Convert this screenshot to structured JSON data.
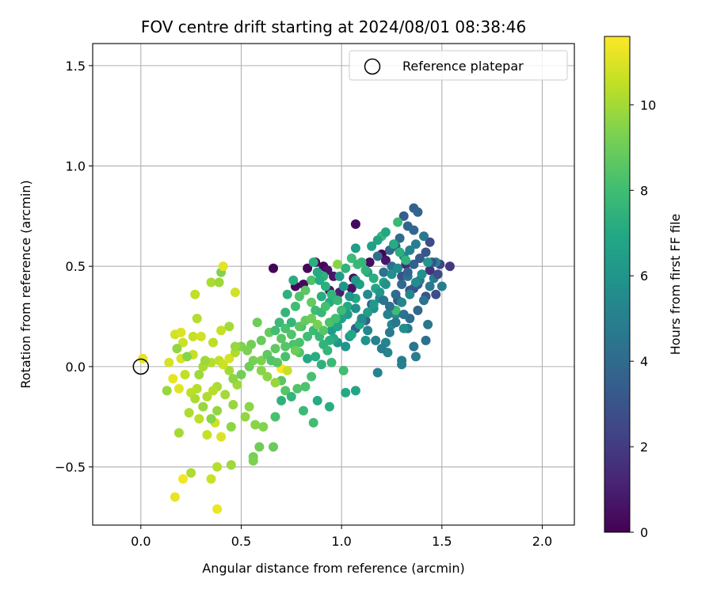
{
  "chart_data": {
    "type": "scatter",
    "title": "FOV centre drift starting at 2024/08/01 08:38:46",
    "xlabel": "Angular distance from reference (arcmin)",
    "ylabel": "Rotation from reference (arcmin)",
    "xlim": [
      -0.24,
      2.16
    ],
    "ylim": [
      -0.79,
      1.61
    ],
    "xticks": [
      0.0,
      0.5,
      1.0,
      1.5,
      2.0
    ],
    "xtick_labels": [
      "0.0",
      "0.5",
      "1.0",
      "1.5",
      "2.0"
    ],
    "yticks": [
      -0.5,
      0.0,
      0.5,
      1.0,
      1.5
    ],
    "ytick_labels": [
      "−0.5",
      "0.0",
      "0.5",
      "1.0",
      "1.5"
    ],
    "grid": true,
    "legend": {
      "position": "top-right",
      "entries": [
        "Reference platepar"
      ]
    },
    "reference_point": {
      "label": "Reference platepar",
      "x": 0.0,
      "y": 0.0
    },
    "colorbar": {
      "label": "Hours from first FF file",
      "min": 0,
      "max": 11.6,
      "ticks": [
        0,
        2,
        4,
        6,
        8,
        10
      ],
      "tick_labels": [
        "0",
        "2",
        "4",
        "6",
        "8",
        "10"
      ],
      "colormap": "viridis"
    },
    "points": [
      [
        0.66,
        0.49,
        0.1
      ],
      [
        0.81,
        0.41,
        0.3
      ],
      [
        0.83,
        0.49,
        0.2
      ],
      [
        0.87,
        0.52,
        0.1
      ],
      [
        0.91,
        0.5,
        0.2
      ],
      [
        0.93,
        0.48,
        0.6
      ],
      [
        1.07,
        0.71,
        0.3
      ],
      [
        1.2,
        0.56,
        0.1
      ],
      [
        1.14,
        0.52,
        0.4
      ],
      [
        1.06,
        0.44,
        0.5
      ],
      [
        0.96,
        0.45,
        0.7
      ],
      [
        0.77,
        0.4,
        0.2
      ],
      [
        0.94,
        0.38,
        0.8
      ],
      [
        0.99,
        0.37,
        1.0
      ],
      [
        1.05,
        0.39,
        0.6
      ],
      [
        1.22,
        0.53,
        0.7
      ],
      [
        1.32,
        0.51,
        1.3
      ],
      [
        1.44,
        0.48,
        1.6
      ],
      [
        1.54,
        0.5,
        1.9
      ],
      [
        1.49,
        0.51,
        2.3
      ],
      [
        1.44,
        0.62,
        2.6
      ],
      [
        1.36,
        0.39,
        2.8
      ],
      [
        1.3,
        0.45,
        3.0
      ],
      [
        1.34,
        0.38,
        3.1
      ],
      [
        1.38,
        0.41,
        3.2
      ],
      [
        1.42,
        0.35,
        2.9
      ],
      [
        1.47,
        0.36,
        2.7
      ],
      [
        1.28,
        0.33,
        3.3
      ],
      [
        1.15,
        0.31,
        3.4
      ],
      [
        1.12,
        0.23,
        3.5
      ],
      [
        1.07,
        0.19,
        3.6
      ],
      [
        1.27,
        0.6,
        3.5
      ],
      [
        1.31,
        0.75,
        3.4
      ],
      [
        1.36,
        0.79,
        3.6
      ],
      [
        1.38,
        0.77,
        3.7
      ],
      [
        1.33,
        0.7,
        3.8
      ],
      [
        1.36,
        0.68,
        3.9
      ],
      [
        1.29,
        0.64,
        4.0
      ],
      [
        1.24,
        0.58,
        4.1
      ],
      [
        1.18,
        0.55,
        4.2
      ],
      [
        1.25,
        0.5,
        4.3
      ],
      [
        1.21,
        0.47,
        4.4
      ],
      [
        1.33,
        0.45,
        4.5
      ],
      [
        1.39,
        0.43,
        4.6
      ],
      [
        1.44,
        0.4,
        4.7
      ],
      [
        1.46,
        0.44,
        4.8
      ],
      [
        1.5,
        0.4,
        4.9
      ],
      [
        1.47,
        0.52,
        5.0
      ],
      [
        1.41,
        0.33,
        4.4
      ],
      [
        1.43,
        0.21,
        4.6
      ],
      [
        1.42,
        0.13,
        4.3
      ],
      [
        1.36,
        0.1,
        4.5
      ],
      [
        1.33,
        0.19,
        4.7
      ],
      [
        1.3,
        0.03,
        4.8
      ],
      [
        1.37,
        0.05,
        4.9
      ],
      [
        1.3,
        0.01,
        5.0
      ],
      [
        1.18,
        -0.03,
        5.1
      ],
      [
        1.23,
        0.07,
        5.2
      ],
      [
        1.22,
        0.12,
        5.3
      ],
      [
        1.25,
        0.21,
        5.4
      ],
      [
        1.27,
        0.26,
        5.5
      ],
      [
        1.31,
        0.19,
        5.6
      ],
      [
        1.16,
        0.29,
        5.7
      ],
      [
        1.1,
        0.23,
        5.8
      ],
      [
        1.12,
        0.13,
        5.9
      ],
      [
        1.02,
        0.1,
        6.0
      ],
      [
        0.98,
        0.12,
        6.1
      ],
      [
        1.04,
        0.15,
        6.2
      ],
      [
        0.95,
        0.18,
        6.3
      ],
      [
        1.07,
        0.59,
        6.4
      ],
      [
        1.09,
        0.41,
        6.5
      ],
      [
        1.13,
        0.47,
        6.6
      ],
      [
        1.21,
        0.42,
        6.7
      ],
      [
        1.17,
        0.39,
        6.8
      ],
      [
        1.07,
        0.34,
        6.9
      ],
      [
        1.03,
        0.3,
        7.0
      ],
      [
        0.94,
        0.32,
        7.1
      ],
      [
        0.9,
        0.35,
        7.2
      ],
      [
        0.86,
        0.52,
        7.3
      ],
      [
        0.91,
        0.45,
        7.4
      ],
      [
        1.02,
        0.49,
        7.5
      ],
      [
        1.1,
        0.52,
        7.6
      ],
      [
        1.2,
        0.65,
        7.7
      ],
      [
        1.28,
        0.72,
        7.8
      ],
      [
        1.27,
        0.28,
        7.9
      ],
      [
        1.23,
        0.26,
        5.0
      ],
      [
        1.19,
        0.34,
        5.3
      ],
      [
        1.13,
        0.36,
        5.5
      ],
      [
        1.07,
        0.43,
        6.1
      ],
      [
        1.03,
        0.26,
        6.3
      ],
      [
        1.0,
        0.24,
        6.6
      ],
      [
        0.98,
        0.2,
        6.8
      ],
      [
        0.96,
        0.14,
        7.0
      ],
      [
        0.94,
        0.13,
        7.3
      ],
      [
        0.91,
        0.11,
        7.5
      ],
      [
        0.89,
        0.15,
        7.7
      ],
      [
        0.86,
        0.18,
        7.8
      ],
      [
        0.83,
        0.15,
        8.0
      ],
      [
        0.8,
        0.2,
        8.1
      ],
      [
        0.79,
        0.12,
        8.2
      ],
      [
        0.76,
        0.11,
        8.3
      ],
      [
        0.79,
        0.07,
        8.4
      ],
      [
        0.72,
        0.1,
        8.5
      ],
      [
        0.7,
        0.14,
        8.6
      ],
      [
        0.67,
        0.09,
        8.7
      ],
      [
        0.64,
        0.17,
        8.8
      ],
      [
        0.6,
        0.13,
        8.9
      ],
      [
        0.58,
        0.22,
        9.0
      ],
      [
        0.55,
        0.11,
        9.1
      ],
      [
        0.83,
        0.04,
        7.0
      ],
      [
        0.87,
        0.05,
        7.2
      ],
      [
        0.9,
        0.01,
        7.4
      ],
      [
        0.93,
        0.08,
        7.6
      ],
      [
        0.95,
        0.02,
        7.8
      ],
      [
        1.01,
        -0.02,
        8.0
      ],
      [
        0.85,
        -0.05,
        8.2
      ],
      [
        0.82,
        -0.1,
        8.3
      ],
      [
        0.78,
        -0.11,
        8.4
      ],
      [
        0.72,
        -0.12,
        8.5
      ],
      [
        0.7,
        -0.07,
        8.6
      ],
      [
        0.7,
        -0.17,
        7.4
      ],
      [
        0.75,
        -0.15,
        7.6
      ],
      [
        0.81,
        -0.22,
        7.8
      ],
      [
        0.86,
        -0.28,
        8.0
      ],
      [
        0.94,
        -0.2,
        7.2
      ],
      [
        1.02,
        -0.13,
        7.0
      ],
      [
        1.07,
        -0.12,
        6.8
      ],
      [
        0.88,
        -0.17,
        7.1
      ],
      [
        0.67,
        -0.25,
        8.2
      ],
      [
        0.66,
        -0.4,
        8.9
      ],
      [
        0.59,
        -0.4,
        9.0
      ],
      [
        0.56,
        -0.45,
        9.2
      ],
      [
        0.56,
        -0.47,
        9.3
      ],
      [
        0.61,
        -0.3,
        9.4
      ],
      [
        0.57,
        -0.29,
        9.5
      ],
      [
        0.54,
        -0.2,
        9.6
      ],
      [
        0.52,
        -0.25,
        9.7
      ],
      [
        0.46,
        -0.19,
        9.8
      ],
      [
        0.48,
        -0.09,
        9.9
      ],
      [
        0.44,
        -0.02,
        10.0
      ],
      [
        0.38,
        -0.1,
        10.1
      ],
      [
        0.33,
        -0.15,
        10.2
      ],
      [
        0.28,
        -0.11,
        10.3
      ],
      [
        0.25,
        -0.13,
        10.4
      ],
      [
        0.22,
        -0.04,
        10.5
      ],
      [
        0.26,
        0.06,
        10.6
      ],
      [
        0.21,
        0.12,
        10.7
      ],
      [
        0.17,
        0.16,
        10.8
      ],
      [
        0.14,
        0.02,
        10.9
      ],
      [
        0.2,
        0.04,
        11.0
      ],
      [
        0.19,
        -0.11,
        11.1
      ],
      [
        0.16,
        -0.06,
        11.2
      ],
      [
        0.13,
        -0.12,
        9.8
      ],
      [
        0.19,
        -0.33,
        10.0
      ],
      [
        0.24,
        -0.23,
        10.2
      ],
      [
        0.29,
        -0.26,
        10.4
      ],
      [
        0.33,
        -0.34,
        10.6
      ],
      [
        0.37,
        -0.28,
        10.8
      ],
      [
        0.4,
        -0.35,
        11.0
      ],
      [
        0.45,
        -0.3,
        9.6
      ],
      [
        0.45,
        -0.49,
        9.9
      ],
      [
        0.38,
        -0.5,
        10.3
      ],
      [
        0.35,
        -0.56,
        10.7
      ],
      [
        0.25,
        -0.53,
        10.2
      ],
      [
        0.21,
        -0.56,
        11.4
      ],
      [
        0.17,
        -0.65,
        11.2
      ],
      [
        0.38,
        -0.71,
        11.3
      ],
      [
        0.29,
        -0.04,
        9.9
      ],
      [
        0.31,
        0.0,
        10.1
      ],
      [
        0.35,
        0.02,
        10.3
      ],
      [
        0.39,
        0.03,
        10.5
      ],
      [
        0.41,
        0.01,
        10.7
      ],
      [
        0.44,
        0.04,
        10.9
      ],
      [
        0.47,
        0.07,
        10.2
      ],
      [
        0.5,
        0.1,
        9.4
      ],
      [
        0.53,
        0.08,
        9.3
      ],
      [
        0.56,
        0.03,
        9.2
      ],
      [
        0.6,
        -0.02,
        9.5
      ],
      [
        0.63,
        -0.05,
        9.6
      ],
      [
        0.67,
        -0.08,
        9.8
      ],
      [
        0.7,
        -0.01,
        11.5
      ],
      [
        0.73,
        -0.02,
        10.6
      ],
      [
        0.77,
        0.08,
        9.0
      ],
      [
        0.36,
        0.12,
        10.4
      ],
      [
        0.4,
        0.18,
        10.6
      ],
      [
        0.44,
        0.2,
        10.0
      ],
      [
        0.47,
        0.1,
        9.8
      ],
      [
        0.35,
        0.42,
        10.1
      ],
      [
        0.39,
        0.42,
        9.9
      ],
      [
        0.4,
        0.47,
        9.4
      ],
      [
        0.41,
        0.5,
        11.1
      ],
      [
        0.47,
        0.37,
        10.8
      ],
      [
        0.27,
        0.36,
        10.5
      ],
      [
        0.28,
        0.24,
        10.3
      ],
      [
        0.26,
        0.15,
        10.6
      ],
      [
        0.3,
        0.15,
        10.8
      ],
      [
        0.2,
        0.17,
        11.0
      ],
      [
        0.18,
        0.09,
        9.7
      ],
      [
        0.23,
        0.05,
        9.5
      ],
      [
        0.32,
        0.03,
        9.9
      ],
      [
        0.36,
        -0.12,
        10.3
      ],
      [
        0.42,
        -0.14,
        10.0
      ],
      [
        0.38,
        -0.22,
        9.7
      ],
      [
        0.35,
        -0.26,
        9.5
      ],
      [
        0.31,
        -0.2,
        9.8
      ],
      [
        0.27,
        -0.16,
        10.1
      ],
      [
        0.01,
        0.04,
        11.2
      ],
      [
        0.5,
        -0.04,
        9.1
      ],
      [
        0.46,
        -0.06,
        9.6
      ],
      [
        0.54,
        0.0,
        9.0
      ],
      [
        0.6,
        0.03,
        9.3
      ],
      [
        0.63,
        0.06,
        8.7
      ],
      [
        0.65,
        0.03,
        8.4
      ],
      [
        0.68,
        0.02,
        8.6
      ],
      [
        0.72,
        0.05,
        8.2
      ],
      [
        0.75,
        0.22,
        7.6
      ],
      [
        0.77,
        0.3,
        8.0
      ],
      [
        0.79,
        0.35,
        8.4
      ],
      [
        0.82,
        0.38,
        8.6
      ],
      [
        0.85,
        0.32,
        8.8
      ],
      [
        0.87,
        0.28,
        7.9
      ],
      [
        0.9,
        0.27,
        7.7
      ],
      [
        0.92,
        0.3,
        8.1
      ],
      [
        0.98,
        0.51,
        9.5
      ],
      [
        0.85,
        0.43,
        8.3
      ],
      [
        0.88,
        0.47,
        7.0
      ],
      [
        0.76,
        0.43,
        7.2
      ],
      [
        0.73,
        0.36,
        7.4
      ],
      [
        0.72,
        0.27,
        7.6
      ],
      [
        0.69,
        0.22,
        7.8
      ],
      [
        0.67,
        0.18,
        8.0
      ],
      [
        0.72,
        0.19,
        8.2
      ],
      [
        0.75,
        0.16,
        8.4
      ],
      [
        0.79,
        0.2,
        8.6
      ],
      [
        0.82,
        0.23,
        8.8
      ],
      [
        0.85,
        0.24,
        9.0
      ],
      [
        0.88,
        0.21,
        9.2
      ],
      [
        0.91,
        0.18,
        8.5
      ],
      [
        0.94,
        0.22,
        8.3
      ],
      [
        0.97,
        0.24,
        8.1
      ],
      [
        1.0,
        0.28,
        7.9
      ],
      [
        0.98,
        0.33,
        7.7
      ],
      [
        0.95,
        0.36,
        7.5
      ],
      [
        0.92,
        0.4,
        7.3
      ],
      [
        0.89,
        0.43,
        7.1
      ],
      [
        1.05,
        0.16,
        6.9
      ],
      [
        1.09,
        0.21,
        6.7
      ],
      [
        1.13,
        0.27,
        6.5
      ],
      [
        1.16,
        0.31,
        6.3
      ],
      [
        1.19,
        0.37,
        6.1
      ],
      [
        1.22,
        0.41,
        5.9
      ],
      [
        1.25,
        0.46,
        5.7
      ],
      [
        1.28,
        0.49,
        5.5
      ],
      [
        1.31,
        0.55,
        5.3
      ],
      [
        1.34,
        0.58,
        5.1
      ],
      [
        1.37,
        0.61,
        4.9
      ],
      [
        1.41,
        0.65,
        4.7
      ],
      [
        1.21,
        0.33,
        4.5
      ],
      [
        1.24,
        0.3,
        4.3
      ],
      [
        1.27,
        0.36,
        4.1
      ],
      [
        1.3,
        0.41,
        3.9
      ],
      [
        1.33,
        0.47,
        3.7
      ],
      [
        1.36,
        0.51,
        3.5
      ],
      [
        1.39,
        0.54,
        3.3
      ],
      [
        1.42,
        0.57,
        3.1
      ],
      [
        1.45,
        0.52,
        2.9
      ],
      [
        1.48,
        0.46,
        2.7
      ],
      [
        1.38,
        0.28,
        3.9
      ],
      [
        1.34,
        0.24,
        4.1
      ],
      [
        1.31,
        0.26,
        4.3
      ],
      [
        1.27,
        0.22,
        4.5
      ],
      [
        1.24,
        0.17,
        4.7
      ],
      [
        1.2,
        0.09,
        4.9
      ],
      [
        1.17,
        0.13,
        5.1
      ],
      [
        1.13,
        0.18,
        5.3
      ],
      [
        1.1,
        0.24,
        5.5
      ],
      [
        1.07,
        0.29,
        5.7
      ],
      [
        1.04,
        0.35,
        5.9
      ],
      [
        1.01,
        0.4,
        6.1
      ],
      [
        0.99,
        0.45,
        6.3
      ],
      [
        1.15,
        0.6,
        6.5
      ],
      [
        1.18,
        0.63,
        6.7
      ],
      [
        1.22,
        0.67,
        6.9
      ],
      [
        1.26,
        0.61,
        7.1
      ],
      [
        1.29,
        0.57,
        7.3
      ],
      [
        1.32,
        0.53,
        7.5
      ],
      [
        1.16,
        0.44,
        7.3
      ],
      [
        1.12,
        0.48,
        7.5
      ],
      [
        1.08,
        0.51,
        7.7
      ],
      [
        1.05,
        0.54,
        7.9
      ],
      [
        1.43,
        0.52,
        6.0
      ],
      [
        1.4,
        0.46,
        5.8
      ],
      [
        1.37,
        0.42,
        5.6
      ],
      [
        1.34,
        0.36,
        5.4
      ],
      [
        1.3,
        0.32,
        5.2
      ]
    ]
  }
}
